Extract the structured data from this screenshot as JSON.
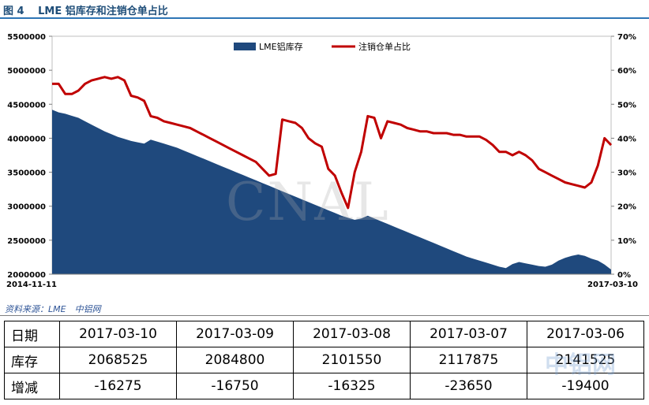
{
  "figure": {
    "title": "图 4　 LME 铝库存和注销仓单占比",
    "source": "资料来源：LME　中铝网",
    "watermark": "CNAL",
    "site_watermark": "中铝网"
  },
  "chart_data": {
    "type": "area",
    "x_start_label": "2014-11-11",
    "x_end_label": "2017-03-10",
    "legend_placement": "top-center",
    "colors": {
      "stock": "#1f497d",
      "ratio": "#c00000"
    },
    "y_left": {
      "ylim": [
        2000000,
        5500000
      ],
      "ticks": [
        "2000000",
        "2500000",
        "3000000",
        "3500000",
        "4000000",
        "4500000",
        "5000000",
        "5500000"
      ]
    },
    "y_right": {
      "ylim": [
        0,
        70
      ],
      "ticks": [
        "0%",
        "10%",
        "20%",
        "30%",
        "40%",
        "50%",
        "60%",
        "70%"
      ]
    },
    "series": [
      {
        "name": "LME铝库存",
        "kind": "area",
        "axis": "left",
        "values": [
          4420000,
          4380000,
          4360000,
          4330000,
          4300000,
          4250000,
          4200000,
          4150000,
          4100000,
          4060000,
          4020000,
          3990000,
          3960000,
          3940000,
          3920000,
          3980000,
          3950000,
          3920000,
          3890000,
          3860000,
          3820000,
          3780000,
          3740000,
          3700000,
          3660000,
          3620000,
          3580000,
          3540000,
          3500000,
          3460000,
          3420000,
          3380000,
          3340000,
          3300000,
          3260000,
          3220000,
          3180000,
          3140000,
          3100000,
          3060000,
          3020000,
          2980000,
          2940000,
          2900000,
          2860000,
          2830000,
          2800000,
          2820000,
          2860000,
          2820000,
          2780000,
          2740000,
          2700000,
          2660000,
          2620000,
          2580000,
          2540000,
          2500000,
          2460000,
          2420000,
          2380000,
          2340000,
          2300000,
          2260000,
          2230000,
          2200000,
          2170000,
          2140000,
          2110000,
          2090000,
          2150000,
          2180000,
          2160000,
          2140000,
          2120000,
          2110000,
          2140000,
          2200000,
          2240000,
          2270000,
          2290000,
          2270000,
          2230000,
          2200000,
          2141525,
          2068525
        ]
      },
      {
        "name": "注销仓单占比",
        "kind": "line",
        "axis": "right",
        "values": [
          56,
          56,
          53,
          53,
          54,
          56,
          57,
          57.5,
          58,
          57.5,
          58,
          57,
          52.5,
          52,
          51,
          46.5,
          46,
          45,
          44.5,
          44,
          43.5,
          43,
          42,
          41,
          40,
          39,
          38,
          37,
          36,
          35,
          34,
          33,
          31,
          29,
          29.5,
          45.5,
          45,
          44.5,
          43,
          40,
          38.5,
          37.5,
          31,
          29,
          24,
          19.5,
          30,
          36,
          46.5,
          46,
          40,
          45,
          44.5,
          44,
          43,
          42.5,
          42,
          42,
          41.5,
          41.5,
          41.5,
          41,
          41,
          40.5,
          40.5,
          40.5,
          39.5,
          38,
          36,
          36,
          35,
          36,
          35,
          33.5,
          31,
          30,
          29,
          28,
          27,
          26.5,
          26,
          25.5,
          27,
          32,
          40,
          38
        ]
      }
    ]
  },
  "table": {
    "rows": [
      {
        "label": "日期",
        "cells": [
          "2017-03-10",
          "2017-03-09",
          "2017-03-08",
          "2017-03-07",
          "2017-03-06"
        ]
      },
      {
        "label": "库存",
        "cells": [
          "2068525",
          "2084800",
          "2101550",
          "2117875",
          "2141525"
        ]
      },
      {
        "label": "增减",
        "cells": [
          "-16275",
          "-16750",
          "-16325",
          "-23650",
          "-19400"
        ]
      }
    ]
  }
}
